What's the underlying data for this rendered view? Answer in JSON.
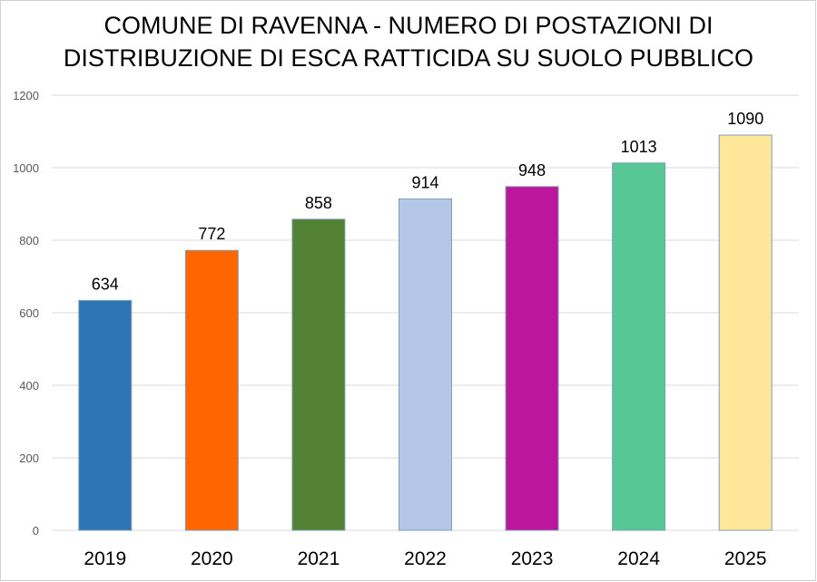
{
  "chart_data": {
    "type": "bar",
    "title_lines": [
      "COMUNE DI RAVENNA - NUMERO DI POSTAZIONI DI",
      "DISTRIBUZIONE DI ESCA RATTICIDA SU SUOLO PUBBLICO"
    ],
    "categories": [
      "2019",
      "2020",
      "2021",
      "2022",
      "2023",
      "2024",
      "2025"
    ],
    "values": [
      634,
      772,
      858,
      914,
      948,
      1013,
      1090
    ],
    "colors": [
      "#2e75b6",
      "#ff6600",
      "#548235",
      "#b4c7e7",
      "#bc169c",
      "#57c795",
      "#ffe699"
    ],
    "xlabel": "",
    "ylabel": "",
    "ylim": [
      0,
      1200
    ],
    "yticks": [
      0,
      200,
      400,
      600,
      800,
      1000,
      1200
    ],
    "grid": true,
    "legend": "none"
  }
}
